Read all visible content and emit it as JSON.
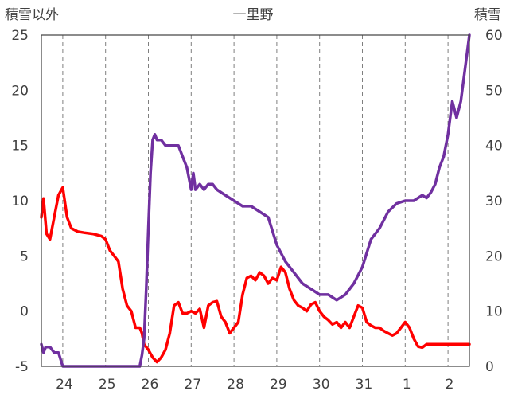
{
  "chart_data": {
    "type": "line",
    "title": "一里野",
    "ylabel_left": "積雪以外",
    "ylabel_right": "積雪",
    "x_tick_labels": [
      "24",
      "25",
      "26",
      "27",
      "28",
      "29",
      "30",
      "31",
      "1",
      "2"
    ],
    "xlim": [
      23.5,
      2.5
    ],
    "ylim_left": [
      -5,
      25
    ],
    "ylim_right": [
      0,
      60
    ],
    "yticks_left": [
      -5,
      0,
      5,
      10,
      15,
      20,
      25
    ],
    "yticks_right": [
      0,
      10,
      20,
      30,
      40,
      50,
      60
    ],
    "grid": "vertical-dashed",
    "colors": {
      "other": "#ff0000",
      "snow": "#7030a0",
      "grid": "#7f7f7f"
    },
    "series": [
      {
        "axis": "left",
        "x": [
          23.5,
          23.55,
          23.62,
          23.7,
          23.8,
          23.9,
          24.0,
          24.1,
          24.2,
          24.35,
          24.5,
          24.7,
          24.9,
          25.0,
          25.1,
          25.2,
          25.3,
          25.4,
          25.5,
          25.6,
          25.7,
          25.8,
          25.85,
          25.9,
          26.0,
          26.1,
          26.2,
          26.3,
          26.4,
          26.5,
          26.6,
          26.7,
          26.8,
          26.9,
          27.0,
          27.1,
          27.2,
          27.3,
          27.4,
          27.5,
          27.6,
          27.7,
          27.8,
          27.9,
          28.0,
          28.1,
          28.2,
          28.3,
          28.4,
          28.5,
          28.6,
          28.7,
          28.8,
          28.9,
          29.0,
          29.1,
          29.2,
          29.3,
          29.4,
          29.5,
          29.6,
          29.7,
          29.8,
          29.9,
          30.0,
          30.1,
          30.2,
          30.3,
          30.4,
          30.5,
          30.6,
          30.7,
          30.8,
          30.9,
          31.0,
          31.1,
          31.2,
          31.3,
          31.4,
          31.5,
          31.6,
          31.7,
          31.8,
          31.9,
          32.0,
          32.1,
          32.2,
          32.3,
          32.4,
          32.5,
          32.6,
          32.7,
          32.8,
          32.9,
          33.0,
          33.1,
          33.2,
          33.3,
          33.4,
          33.5
        ],
        "y": [
          8.5,
          10.2,
          7.0,
          6.5,
          8.5,
          10.5,
          11.2,
          8.5,
          7.5,
          7.2,
          7.1,
          7.0,
          6.8,
          6.5,
          5.5,
          5.0,
          4.5,
          2.0,
          0.5,
          0.0,
          -1.5,
          -1.5,
          -2.0,
          -3.0,
          -3.5,
          -4.2,
          -4.6,
          -4.2,
          -3.5,
          -2.0,
          0.5,
          0.8,
          -0.2,
          -0.2,
          0.0,
          -0.2,
          0.2,
          -1.5,
          0.5,
          0.8,
          0.9,
          -0.5,
          -1.0,
          -2.0,
          -1.5,
          -1.0,
          1.5,
          3.0,
          3.2,
          2.8,
          3.5,
          3.2,
          2.5,
          3.0,
          2.8,
          4.0,
          3.5,
          2.0,
          1.0,
          0.5,
          0.3,
          0.0,
          0.6,
          0.8,
          0.0,
          -0.5,
          -0.8,
          -1.2,
          -1.0,
          -1.5,
          -1.0,
          -1.5,
          -0.5,
          0.5,
          0.3,
          -1.0,
          -1.3,
          -1.5,
          -1.5,
          -1.8,
          -2.0,
          -2.2,
          -2.0,
          -1.5,
          -1.0,
          -1.5,
          -2.5,
          -3.2,
          -3.3,
          -3.0,
          -3.0,
          -3.0,
          -3.0,
          -3.0,
          -3.0,
          -3.0,
          -3.0,
          -3.0,
          -3.0,
          -3.0
        ]
      },
      {
        "axis": "right",
        "x": [
          23.5,
          23.55,
          23.6,
          23.7,
          23.8,
          23.9,
          24.0,
          24.5,
          25.0,
          25.5,
          25.8,
          25.85,
          25.9,
          25.95,
          26.0,
          26.05,
          26.1,
          26.15,
          26.2,
          26.3,
          26.4,
          26.5,
          26.55,
          26.6,
          26.7,
          26.8,
          26.9,
          27.0,
          27.05,
          27.1,
          27.2,
          27.3,
          27.4,
          27.5,
          27.6,
          27.8,
          28.0,
          28.2,
          28.4,
          28.6,
          28.8,
          29.0,
          29.2,
          29.4,
          29.6,
          29.8,
          30.0,
          30.2,
          30.4,
          30.6,
          30.8,
          31.0,
          31.2,
          31.4,
          31.6,
          31.8,
          32.0,
          32.2,
          32.4,
          32.5,
          32.6,
          32.7,
          32.8,
          32.9,
          33.0,
          33.1,
          33.2,
          33.3,
          33.4,
          33.5
        ],
        "y": [
          4.0,
          2.5,
          3.5,
          3.5,
          2.5,
          2.5,
          0.0,
          0.0,
          0.0,
          0.0,
          0.0,
          2.0,
          5.0,
          14.0,
          25.0,
          35.0,
          41.0,
          42.0,
          41.0,
          41.0,
          40.0,
          40.0,
          40.0,
          40.0,
          40.0,
          38.0,
          36.0,
          32.0,
          35.0,
          32.0,
          33.0,
          32.0,
          33.0,
          33.0,
          32.0,
          31.0,
          30.0,
          29.0,
          29.0,
          28.0,
          27.0,
          22.0,
          19.0,
          17.0,
          15.0,
          14.0,
          13.0,
          13.0,
          12.0,
          13.0,
          15.0,
          18.0,
          23.0,
          25.0,
          28.0,
          29.5,
          30.0,
          30.0,
          31.0,
          30.5,
          31.5,
          33.0,
          36.0,
          38.0,
          42.0,
          48.0,
          45.0,
          48.0,
          54.0,
          60.0
        ]
      }
    ]
  }
}
